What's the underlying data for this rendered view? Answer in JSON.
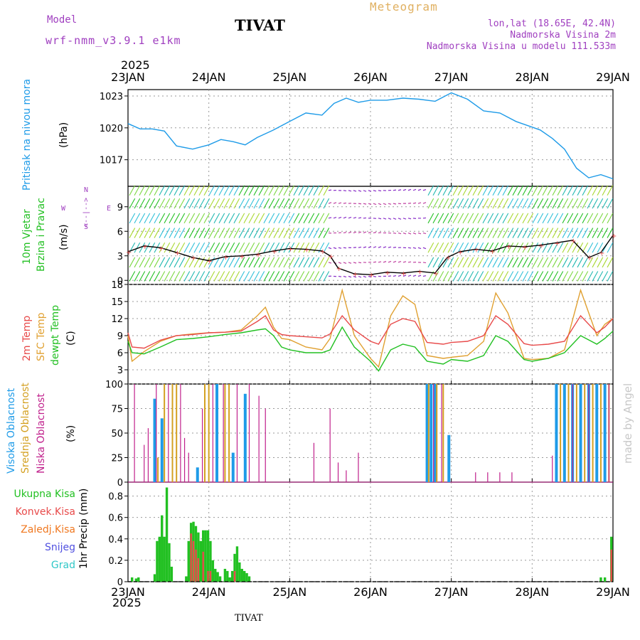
{
  "header": {
    "model_label": "Model",
    "model_name": "wrf-nmm_v3.9.1 e1km",
    "station": "TIVAT",
    "meteogram_label": "Meteogram",
    "lonlat": "lon,lat (18.65E, 42.4N)",
    "elevation": "Nadmorska Visina 2m",
    "model_elevation": "Nadmorska Visina u modelu 111.533m",
    "year_top": "2025",
    "year_bottom": "2025",
    "footer_station": "TIVAT",
    "credit": "made by Angel"
  },
  "colors": {
    "pressure": "#1e9be8",
    "temp2m": "#e84a4a",
    "sfc": "#e0a030",
    "dewpt": "#22c022",
    "high_cloud": "#1e9be8",
    "mid_cloud": "#d4a020",
    "low_cloud": "#c0208c",
    "total_precip": "#22c022",
    "conv_precip": "#e84a4a",
    "model_purple": "#a040c0",
    "meteogram_gold": "#e0b060",
    "credit_gray": "#c8c8c8"
  },
  "chart_data": [
    {
      "id": "pressure",
      "type": "line",
      "ylabel_name": "Pritisak na nivou mora",
      "ylabel_unit": "(hPa)",
      "yticks": [
        1017,
        1020,
        1023
      ],
      "ylim": [
        1014.5,
        1023.6
      ],
      "x_days": [
        0,
        0.15,
        0.3,
        0.45,
        0.6,
        0.8,
        1.0,
        1.15,
        1.3,
        1.45,
        1.6,
        1.8,
        2.0,
        2.2,
        2.4,
        2.55,
        2.7,
        2.85,
        3.0,
        3.2,
        3.4,
        3.6,
        3.8,
        4.0,
        4.2,
        4.4,
        4.6,
        4.8,
        4.95,
        5.1,
        5.25,
        5.4,
        5.55,
        5.7,
        5.85,
        6.0
      ],
      "series": [
        {
          "key": "pressure",
          "values": [
            1020.4,
            1019.9,
            1019.9,
            1019.7,
            1018.3,
            1018.0,
            1018.4,
            1018.9,
            1018.7,
            1018.4,
            1019.1,
            1019.8,
            1020.6,
            1021.4,
            1021.2,
            1022.3,
            1022.8,
            1022.4,
            1022.6,
            1022.6,
            1022.8,
            1022.7,
            1022.5,
            1023.3,
            1022.7,
            1021.6,
            1021.4,
            1020.6,
            1020.2,
            1019.8,
            1019.0,
            1018.0,
            1016.2,
            1015.3,
            1015.6,
            1015.2
          ]
        }
      ]
    },
    {
      "id": "wind",
      "type": "line",
      "ylabel_name_1": "10m Vjetar",
      "ylabel_name_2": "Brzina i Pravac",
      "ylabel_unit": "(m/s)",
      "compass_ns": "<--|-->",
      "compass_w": "W",
      "compass_e": "E",
      "compass_n": "N",
      "compass_s": "S",
      "yticks": [
        0,
        3,
        6,
        9
      ],
      "ylim": [
        -0.5,
        11.5
      ],
      "x_days": [
        0,
        0.2,
        0.4,
        0.6,
        0.8,
        1.0,
        1.2,
        1.4,
        1.6,
        1.8,
        2.0,
        2.2,
        2.4,
        2.5,
        2.6,
        2.8,
        3.0,
        3.2,
        3.4,
        3.6,
        3.8,
        3.95,
        4.1,
        4.3,
        4.5,
        4.7,
        4.9,
        5.1,
        5.3,
        5.5,
        5.7,
        5.85,
        6.0
      ],
      "series": [
        {
          "key": "speed",
          "values": [
            3.5,
            4.2,
            4.0,
            3.4,
            2.8,
            2.4,
            2.9,
            3.0,
            3.2,
            3.6,
            3.9,
            3.8,
            3.6,
            3.0,
            1.5,
            0.8,
            0.7,
            1.0,
            0.9,
            1.1,
            0.9,
            2.8,
            3.5,
            3.8,
            3.6,
            4.2,
            4.1,
            4.3,
            4.6,
            4.9,
            2.8,
            3.4,
            5.5
          ]
        }
      ]
    },
    {
      "id": "temperature",
      "type": "line",
      "ylabel_name_1": "2m Temp",
      "ylabel_name_2": "SFC Temp",
      "ylabel_name_3": "dewpt Temp",
      "ylabel_unit": "(C)",
      "yticks": [
        3,
        6,
        9,
        12,
        15,
        18
      ],
      "ylim": [
        0.5,
        18
      ],
      "x_days": [
        0,
        0.05,
        0.2,
        0.4,
        0.6,
        0.8,
        1.0,
        1.2,
        1.4,
        1.6,
        1.7,
        1.8,
        1.9,
        2.0,
        2.2,
        2.4,
        2.5,
        2.65,
        2.8,
        3.0,
        3.1,
        3.25,
        3.4,
        3.55,
        3.7,
        3.9,
        4.0,
        4.2,
        4.4,
        4.55,
        4.7,
        4.9,
        5.0,
        5.2,
        5.4,
        5.6,
        5.8,
        5.9,
        6.0
      ],
      "series": [
        {
          "key": "temp2m",
          "values": [
            9.5,
            7.0,
            6.8,
            8.2,
            9.0,
            9.2,
            9.5,
            9.6,
            9.8,
            11.5,
            12.5,
            10.0,
            9.2,
            9.0,
            8.8,
            8.6,
            9.3,
            12.5,
            10.0,
            8.0,
            7.5,
            11.0,
            12.0,
            11.5,
            7.8,
            7.5,
            7.8,
            8.0,
            9.0,
            12.5,
            11.0,
            7.6,
            7.3,
            7.5,
            8.0,
            12.5,
            9.5,
            10.5,
            12.0
          ]
        },
        {
          "key": "sfc",
          "values": [
            9.0,
            4.5,
            6.2,
            8.0,
            9.0,
            9.3,
            9.5,
            9.6,
            10.0,
            12.5,
            14.0,
            10.5,
            8.5,
            8.3,
            7.0,
            6.5,
            8.5,
            17.0,
            9.0,
            5.0,
            3.5,
            12.5,
            16.0,
            14.5,
            5.5,
            5.0,
            5.2,
            5.5,
            8.0,
            16.5,
            13.0,
            5.0,
            4.8,
            5.0,
            6.5,
            17.0,
            9.0,
            11.0,
            12.0
          ]
        },
        {
          "key": "dewpt",
          "values": [
            8.0,
            6.0,
            5.8,
            7.0,
            8.3,
            8.5,
            8.8,
            9.2,
            9.5,
            10.0,
            10.2,
            9.0,
            7.0,
            6.5,
            6.0,
            6.0,
            6.5,
            10.5,
            7.0,
            4.5,
            2.8,
            6.5,
            7.5,
            7.0,
            4.5,
            4.0,
            4.8,
            4.5,
            5.5,
            9.0,
            8.0,
            4.8,
            4.5,
            5.0,
            6.0,
            9.0,
            7.5,
            8.5,
            9.8
          ]
        }
      ]
    },
    {
      "id": "clouds",
      "type": "bar",
      "ylabel_name_1": "Visoka Oblacnost",
      "ylabel_name_2": "Srednja Oblacnost",
      "ylabel_name_3": "Niska Oblacnost",
      "ylabel_unit": "(%)",
      "yticks": [
        0,
        25,
        50,
        75,
        100
      ],
      "ylim": [
        0,
        100
      ],
      "high": [
        [
          0.33,
          85
        ],
        [
          0.42,
          65
        ],
        [
          0.86,
          15
        ],
        [
          1.1,
          100
        ],
        [
          1.3,
          30
        ],
        [
          1.45,
          90
        ],
        [
          3.7,
          100
        ],
        [
          3.75,
          100
        ],
        [
          3.8,
          100
        ],
        [
          3.97,
          48
        ],
        [
          5.3,
          100
        ],
        [
          5.4,
          100
        ],
        [
          5.5,
          100
        ],
        [
          5.6,
          100
        ],
        [
          5.7,
          100
        ],
        [
          5.8,
          100
        ],
        [
          5.9,
          100
        ]
      ],
      "mid": [
        [
          0.37,
          25
        ],
        [
          0.45,
          100
        ],
        [
          0.55,
          100
        ],
        [
          0.6,
          100
        ],
        [
          0.95,
          100
        ],
        [
          1.0,
          100
        ],
        [
          1.2,
          100
        ],
        [
          1.25,
          100
        ],
        [
          3.72,
          100
        ],
        [
          3.82,
          100
        ],
        [
          3.9,
          100
        ],
        [
          5.35,
          100
        ],
        [
          5.45,
          100
        ],
        [
          5.55,
          100
        ],
        [
          5.65,
          100
        ],
        [
          5.75,
          100
        ],
        [
          5.85,
          100
        ],
        [
          5.95,
          100
        ]
      ],
      "low": [
        [
          0.08,
          100
        ],
        [
          0.2,
          38
        ],
        [
          0.25,
          55
        ],
        [
          0.35,
          100
        ],
        [
          0.5,
          100
        ],
        [
          0.65,
          100
        ],
        [
          0.7,
          45
        ],
        [
          0.75,
          30
        ],
        [
          0.92,
          75
        ],
        [
          1.05,
          100
        ],
        [
          1.18,
          100
        ],
        [
          1.35,
          100
        ],
        [
          1.5,
          100
        ],
        [
          1.62,
          88
        ],
        [
          1.7,
          75
        ],
        [
          2.3,
          40
        ],
        [
          2.5,
          75
        ],
        [
          2.6,
          20
        ],
        [
          2.7,
          12
        ],
        [
          2.85,
          30
        ],
        [
          3.78,
          100
        ],
        [
          3.88,
          100
        ],
        [
          4.3,
          10
        ],
        [
          4.45,
          10
        ],
        [
          4.6,
          10
        ],
        [
          4.75,
          10
        ],
        [
          5.25,
          27
        ],
        [
          5.5,
          100
        ],
        [
          5.7,
          100
        ],
        [
          5.95,
          100
        ]
      ]
    },
    {
      "id": "precip",
      "type": "bar",
      "legend": [
        "Ukupna Kisa",
        "Konvek.Kisa",
        "Zaledj.Kisa",
        "Snijeg",
        "Grad"
      ],
      "legend_colors": [
        "#22c022",
        "#e84a4a",
        "#f07820",
        "#5050e0",
        "#30c8c8"
      ],
      "ylabel": "1hr Precip (mm)",
      "yticks": [
        0,
        0.2,
        0.4,
        0.6,
        0.8
      ],
      "ylim": [
        0,
        0.93
      ],
      "total": [
        [
          0.05,
          0.04
        ],
        [
          0.1,
          0.03
        ],
        [
          0.13,
          0.04
        ],
        [
          0.33,
          0.07
        ],
        [
          0.36,
          0.38
        ],
        [
          0.39,
          0.42
        ],
        [
          0.42,
          0.62
        ],
        [
          0.45,
          0.42
        ],
        [
          0.48,
          0.88
        ],
        [
          0.51,
          0.36
        ],
        [
          0.54,
          0.14
        ],
        [
          0.72,
          0.05
        ],
        [
          0.75,
          0.38
        ],
        [
          0.78,
          0.55
        ],
        [
          0.81,
          0.56
        ],
        [
          0.84,
          0.52
        ],
        [
          0.87,
          0.46
        ],
        [
          0.9,
          0.38
        ],
        [
          0.93,
          0.48
        ],
        [
          0.96,
          0.48
        ],
        [
          0.99,
          0.48
        ],
        [
          1.02,
          0.38
        ],
        [
          1.05,
          0.2
        ],
        [
          1.08,
          0.12
        ],
        [
          1.11,
          0.09
        ],
        [
          1.14,
          0.05
        ],
        [
          1.2,
          0.12
        ],
        [
          1.23,
          0.1
        ],
        [
          1.26,
          0.04
        ],
        [
          1.29,
          0.1
        ],
        [
          1.32,
          0.26
        ],
        [
          1.35,
          0.33
        ],
        [
          1.38,
          0.18
        ],
        [
          1.41,
          0.12
        ],
        [
          1.44,
          0.1
        ],
        [
          1.47,
          0.08
        ],
        [
          1.5,
          0.05
        ],
        [
          5.85,
          0.04
        ],
        [
          5.9,
          0.04
        ],
        [
          5.98,
          0.42
        ]
      ],
      "conv": [
        [
          0.75,
          0.0
        ],
        [
          0.78,
          0.45
        ],
        [
          0.81,
          0.38
        ],
        [
          0.84,
          0.3
        ],
        [
          0.87,
          0.22
        ],
        [
          0.93,
          0.28
        ],
        [
          0.99,
          0.1
        ],
        [
          1.02,
          0.1
        ],
        [
          1.32,
          0.1
        ],
        [
          5.98,
          0.3
        ]
      ]
    }
  ],
  "xaxis": {
    "dates": [
      "23JAN",
      "24JAN",
      "25JAN",
      "26JAN",
      "27JAN",
      "28JAN",
      "29JAN"
    ]
  }
}
